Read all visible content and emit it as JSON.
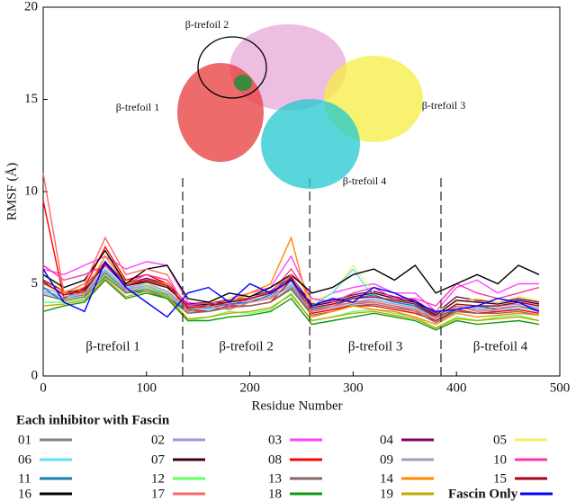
{
  "chart_data": {
    "type": "line",
    "xlabel": "Residue Number",
    "ylabel": "RMSF (Å)",
    "xlim": [
      0,
      500
    ],
    "xticks": [
      0,
      100,
      200,
      300,
      400,
      500
    ],
    "ylim": [
      0,
      20
    ],
    "yticks": [
      0,
      5,
      10,
      15,
      20
    ],
    "dividers": [
      135,
      258,
      385
    ],
    "region_labels": [
      "β-trefoil 1",
      "β-trefoil 2",
      "β-trefoil 3",
      "β-trefoil 4"
    ],
    "inset_labels": [
      "β-trefoil 1",
      "β-trefoil 2",
      "β-trefoil 3",
      "β-trefoil 4"
    ],
    "legend_title": "Each inhibitor with Fascin",
    "x": [
      0,
      20,
      40,
      60,
      80,
      100,
      120,
      140,
      160,
      180,
      200,
      220,
      240,
      260,
      280,
      300,
      320,
      340,
      360,
      380,
      400,
      420,
      440,
      460,
      480
    ],
    "series": [
      {
        "name": "01",
        "color": "#808080",
        "values": [
          4.5,
          4.2,
          4.4,
          5.6,
          4.6,
          4.8,
          4.4,
          3.4,
          3.6,
          3.8,
          3.8,
          4.0,
          4.8,
          3.4,
          3.6,
          3.9,
          4.0,
          3.8,
          3.6,
          3.0,
          3.5,
          3.4,
          3.5,
          3.6,
          3.4
        ]
      },
      {
        "name": "02",
        "color": "#9999dd",
        "values": [
          4.8,
          4.4,
          4.6,
          5.8,
          4.8,
          5.0,
          4.6,
          3.7,
          3.8,
          4.0,
          4.1,
          4.3,
          5.0,
          3.6,
          3.8,
          4.0,
          4.2,
          4.0,
          3.8,
          3.2,
          3.8,
          3.7,
          3.8,
          3.9,
          3.7
        ]
      },
      {
        "name": "03",
        "color": "#ff44ff",
        "values": [
          5.8,
          5.5,
          6.0,
          6.5,
          5.8,
          6.2,
          6.0,
          4.0,
          3.8,
          4.2,
          4.5,
          4.8,
          6.5,
          4.0,
          4.5,
          4.8,
          5.0,
          4.5,
          4.5,
          3.5,
          4.8,
          5.2,
          4.5,
          5.0,
          5.0
        ]
      },
      {
        "name": "04",
        "color": "#800060",
        "values": [
          5.2,
          4.6,
          4.8,
          6.2,
          5.0,
          5.3,
          5.0,
          3.9,
          4.0,
          4.1,
          4.3,
          4.6,
          5.4,
          3.9,
          4.1,
          4.4,
          4.6,
          4.3,
          4.1,
          3.4,
          4.3,
          4.1,
          4.0,
          4.2,
          4.0
        ]
      },
      {
        "name": "05",
        "color": "#f5f060",
        "values": [
          5.5,
          4.6,
          4.8,
          6.0,
          5.0,
          5.0,
          4.8,
          3.8,
          4.0,
          4.2,
          4.3,
          4.4,
          5.8,
          4.0,
          4.5,
          6.0,
          4.5,
          4.2,
          4.0,
          3.5,
          4.0,
          4.2,
          4.0,
          4.3,
          4.1
        ]
      },
      {
        "name": "06",
        "color": "#66ddff",
        "values": [
          4.5,
          4.2,
          4.5,
          5.8,
          4.8,
          4.8,
          4.5,
          3.5,
          3.6,
          3.8,
          4.0,
          4.2,
          5.0,
          3.8,
          4.5,
          5.8,
          4.2,
          4.0,
          3.8,
          3.2,
          3.8,
          3.6,
          3.5,
          3.7,
          3.6
        ]
      },
      {
        "name": "07",
        "color": "#400020",
        "values": [
          5.0,
          4.5,
          4.7,
          6.0,
          4.9,
          5.1,
          4.8,
          3.8,
          3.9,
          4.0,
          4.2,
          4.5,
          5.3,
          3.8,
          4.0,
          4.3,
          4.5,
          4.2,
          4.0,
          3.3,
          4.1,
          4.0,
          3.9,
          4.1,
          3.9
        ]
      },
      {
        "name": "08",
        "color": "#ff0000",
        "values": [
          9.5,
          4.2,
          4.8,
          7.0,
          5.2,
          5.5,
          5.0,
          3.6,
          3.5,
          3.8,
          3.8,
          4.0,
          5.2,
          3.4,
          3.6,
          3.8,
          3.8,
          3.6,
          3.4,
          3.0,
          3.6,
          3.4,
          3.5,
          3.6,
          3.4
        ]
      },
      {
        "name": "09",
        "color": "#aa99bb",
        "values": [
          4.6,
          4.3,
          4.5,
          5.7,
          4.7,
          4.9,
          4.5,
          3.6,
          3.7,
          3.9,
          4.0,
          4.2,
          4.9,
          3.5,
          3.7,
          4.0,
          4.1,
          3.9,
          3.7,
          3.1,
          3.7,
          3.6,
          3.7,
          3.8,
          3.6
        ]
      },
      {
        "name": "10",
        "color": "#ff33aa",
        "values": [
          6.0,
          5.2,
          5.5,
          6.0,
          5.0,
          5.5,
          5.2,
          3.8,
          4.0,
          3.8,
          4.2,
          4.5,
          5.8,
          4.2,
          4.0,
          4.5,
          4.8,
          4.2,
          4.2,
          3.8,
          5.0,
          4.5,
          4.2,
          4.5,
          4.8
        ]
      },
      {
        "name": "11",
        "color": "#1a7fb0",
        "values": [
          4.8,
          4.0,
          4.2,
          5.5,
          4.5,
          4.6,
          4.2,
          3.6,
          3.7,
          3.9,
          4.0,
          4.4,
          5.2,
          3.6,
          3.8,
          4.2,
          4.4,
          4.0,
          3.8,
          3.2,
          3.6,
          3.8,
          3.6,
          3.8,
          3.5
        ]
      },
      {
        "name": "12",
        "color": "#66ff66",
        "values": [
          4.0,
          4.0,
          4.2,
          5.5,
          4.5,
          4.8,
          4.5,
          3.0,
          3.2,
          3.5,
          3.4,
          3.6,
          4.5,
          3.0,
          3.2,
          3.5,
          3.6,
          3.4,
          3.2,
          2.6,
          3.2,
          3.0,
          3.2,
          3.3,
          3.0
        ]
      },
      {
        "name": "13",
        "color": "#886666",
        "values": [
          4.4,
          4.1,
          4.3,
          5.4,
          4.5,
          4.7,
          4.3,
          3.4,
          3.5,
          3.7,
          3.8,
          4.0,
          4.7,
          3.3,
          3.5,
          3.8,
          3.9,
          3.7,
          3.5,
          2.9,
          3.5,
          3.4,
          3.4,
          3.5,
          3.3
        ]
      },
      {
        "name": "14",
        "color": "#ff8800",
        "values": [
          5.0,
          4.5,
          4.5,
          6.5,
          5.0,
          5.2,
          5.0,
          3.5,
          3.8,
          4.0,
          4.5,
          5.0,
          7.5,
          3.2,
          3.5,
          3.8,
          3.6,
          3.5,
          3.2,
          2.8,
          3.4,
          3.2,
          3.3,
          3.4,
          3.3
        ]
      },
      {
        "name": "15",
        "color": "#aa0022",
        "values": [
          5.1,
          4.4,
          4.6,
          6.1,
          4.9,
          5.2,
          4.9,
          3.7,
          3.8,
          4.0,
          4.2,
          4.5,
          5.3,
          3.7,
          3.9,
          4.2,
          4.3,
          4.1,
          3.9,
          3.2,
          3.9,
          3.8,
          3.8,
          4.0,
          3.8
        ]
      },
      {
        "name": "16",
        "color": "#000000",
        "values": [
          5.5,
          4.8,
          5.2,
          6.8,
          5.0,
          5.8,
          6.0,
          4.2,
          4.0,
          4.5,
          4.3,
          4.8,
          5.5,
          4.5,
          4.8,
          5.5,
          5.8,
          5.2,
          6.0,
          4.5,
          5.0,
          5.5,
          5.0,
          6.0,
          5.5
        ]
      },
      {
        "name": "17",
        "color": "#ff6666",
        "values": [
          11.0,
          4.5,
          5.0,
          7.5,
          5.5,
          5.8,
          5.5,
          3.5,
          3.8,
          3.6,
          4.0,
          4.2,
          5.5,
          3.5,
          3.8,
          4.0,
          4.0,
          3.8,
          3.5,
          3.2,
          3.8,
          3.5,
          3.6,
          3.8,
          3.6
        ]
      },
      {
        "name": "18",
        "color": "#119911",
        "values": [
          3.5,
          3.8,
          4.0,
          5.2,
          4.2,
          4.5,
          4.2,
          3.0,
          3.0,
          3.2,
          3.3,
          3.5,
          4.2,
          2.8,
          3.0,
          3.2,
          3.4,
          3.2,
          3.0,
          2.5,
          3.0,
          2.8,
          2.9,
          3.0,
          2.8
        ]
      },
      {
        "name": "19",
        "color": "#bbaa00",
        "values": [
          3.8,
          3.9,
          4.1,
          5.3,
          4.3,
          4.6,
          4.3,
          3.1,
          3.2,
          3.4,
          3.5,
          3.7,
          4.4,
          3.0,
          3.2,
          3.4,
          3.5,
          3.3,
          3.1,
          2.6,
          3.1,
          3.0,
          3.1,
          3.2,
          3.0
        ]
      },
      {
        "name": "Fascin Only",
        "color": "#0000ff",
        "values": [
          5.8,
          4.0,
          3.5,
          6.2,
          4.8,
          4.0,
          3.2,
          4.5,
          4.8,
          4.0,
          5.0,
          4.5,
          5.2,
          3.8,
          4.2,
          4.0,
          4.8,
          4.5,
          4.0,
          3.5,
          3.6,
          3.8,
          4.2,
          4.0,
          3.5
        ]
      }
    ]
  }
}
